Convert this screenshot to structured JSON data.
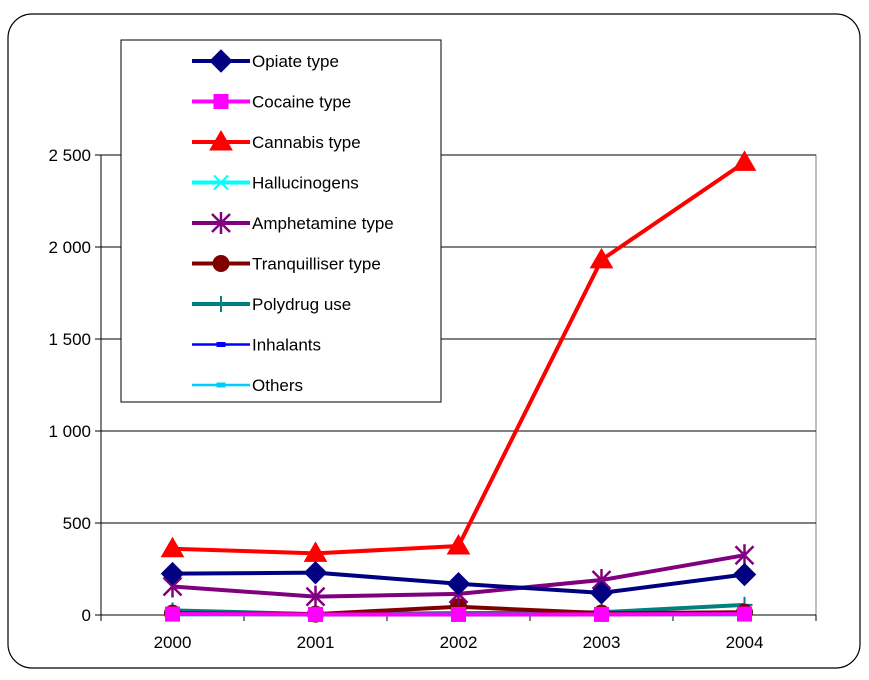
{
  "chart_data": {
    "type": "line",
    "title": "",
    "xlabel": "",
    "ylabel": "",
    "categories": [
      "2000",
      "2001",
      "2002",
      "2003",
      "2004"
    ],
    "ylim": [
      0,
      2500
    ],
    "yticks": [
      0,
      500,
      1000,
      1500,
      2000,
      2500
    ],
    "ytick_labels": [
      "0",
      "500",
      "1 000",
      "1 500",
      "2 000",
      "2 500"
    ],
    "grid": "horizontal",
    "legend_position": "top-left",
    "series": [
      {
        "name": "Opiate type",
        "color": "#000080",
        "marker": "diamond",
        "values": [
          225,
          230,
          170,
          120,
          220
        ]
      },
      {
        "name": "Cocaine type",
        "color": "#ff00ff",
        "marker": "square",
        "values": [
          5,
          3,
          3,
          3,
          5
        ]
      },
      {
        "name": "Cannabis type",
        "color": "#ff0000",
        "marker": "triangle",
        "values": [
          360,
          335,
          375,
          1930,
          2460
        ]
      },
      {
        "name": "Hallucinogens",
        "color": "#00ffff",
        "marker": "x",
        "values": [
          3,
          2,
          2,
          3,
          3
        ]
      },
      {
        "name": "Amphetamine type",
        "color": "#800080",
        "marker": "star",
        "values": [
          155,
          100,
          115,
          190,
          325
        ]
      },
      {
        "name": "Tranquilliser type",
        "color": "#800000",
        "marker": "circle",
        "values": [
          10,
          5,
          45,
          10,
          15
        ]
      },
      {
        "name": "Polydrug use",
        "color": "#008080",
        "marker": "plus",
        "values": [
          25,
          5,
          10,
          15,
          55
        ]
      },
      {
        "name": "Inhalants",
        "color": "#0000ff",
        "marker": "dash",
        "values": [
          0,
          0,
          0,
          0,
          0
        ]
      },
      {
        "name": "Others",
        "color": "#00ccff",
        "marker": "dash",
        "values": [
          2,
          2,
          2,
          2,
          2
        ]
      }
    ]
  }
}
